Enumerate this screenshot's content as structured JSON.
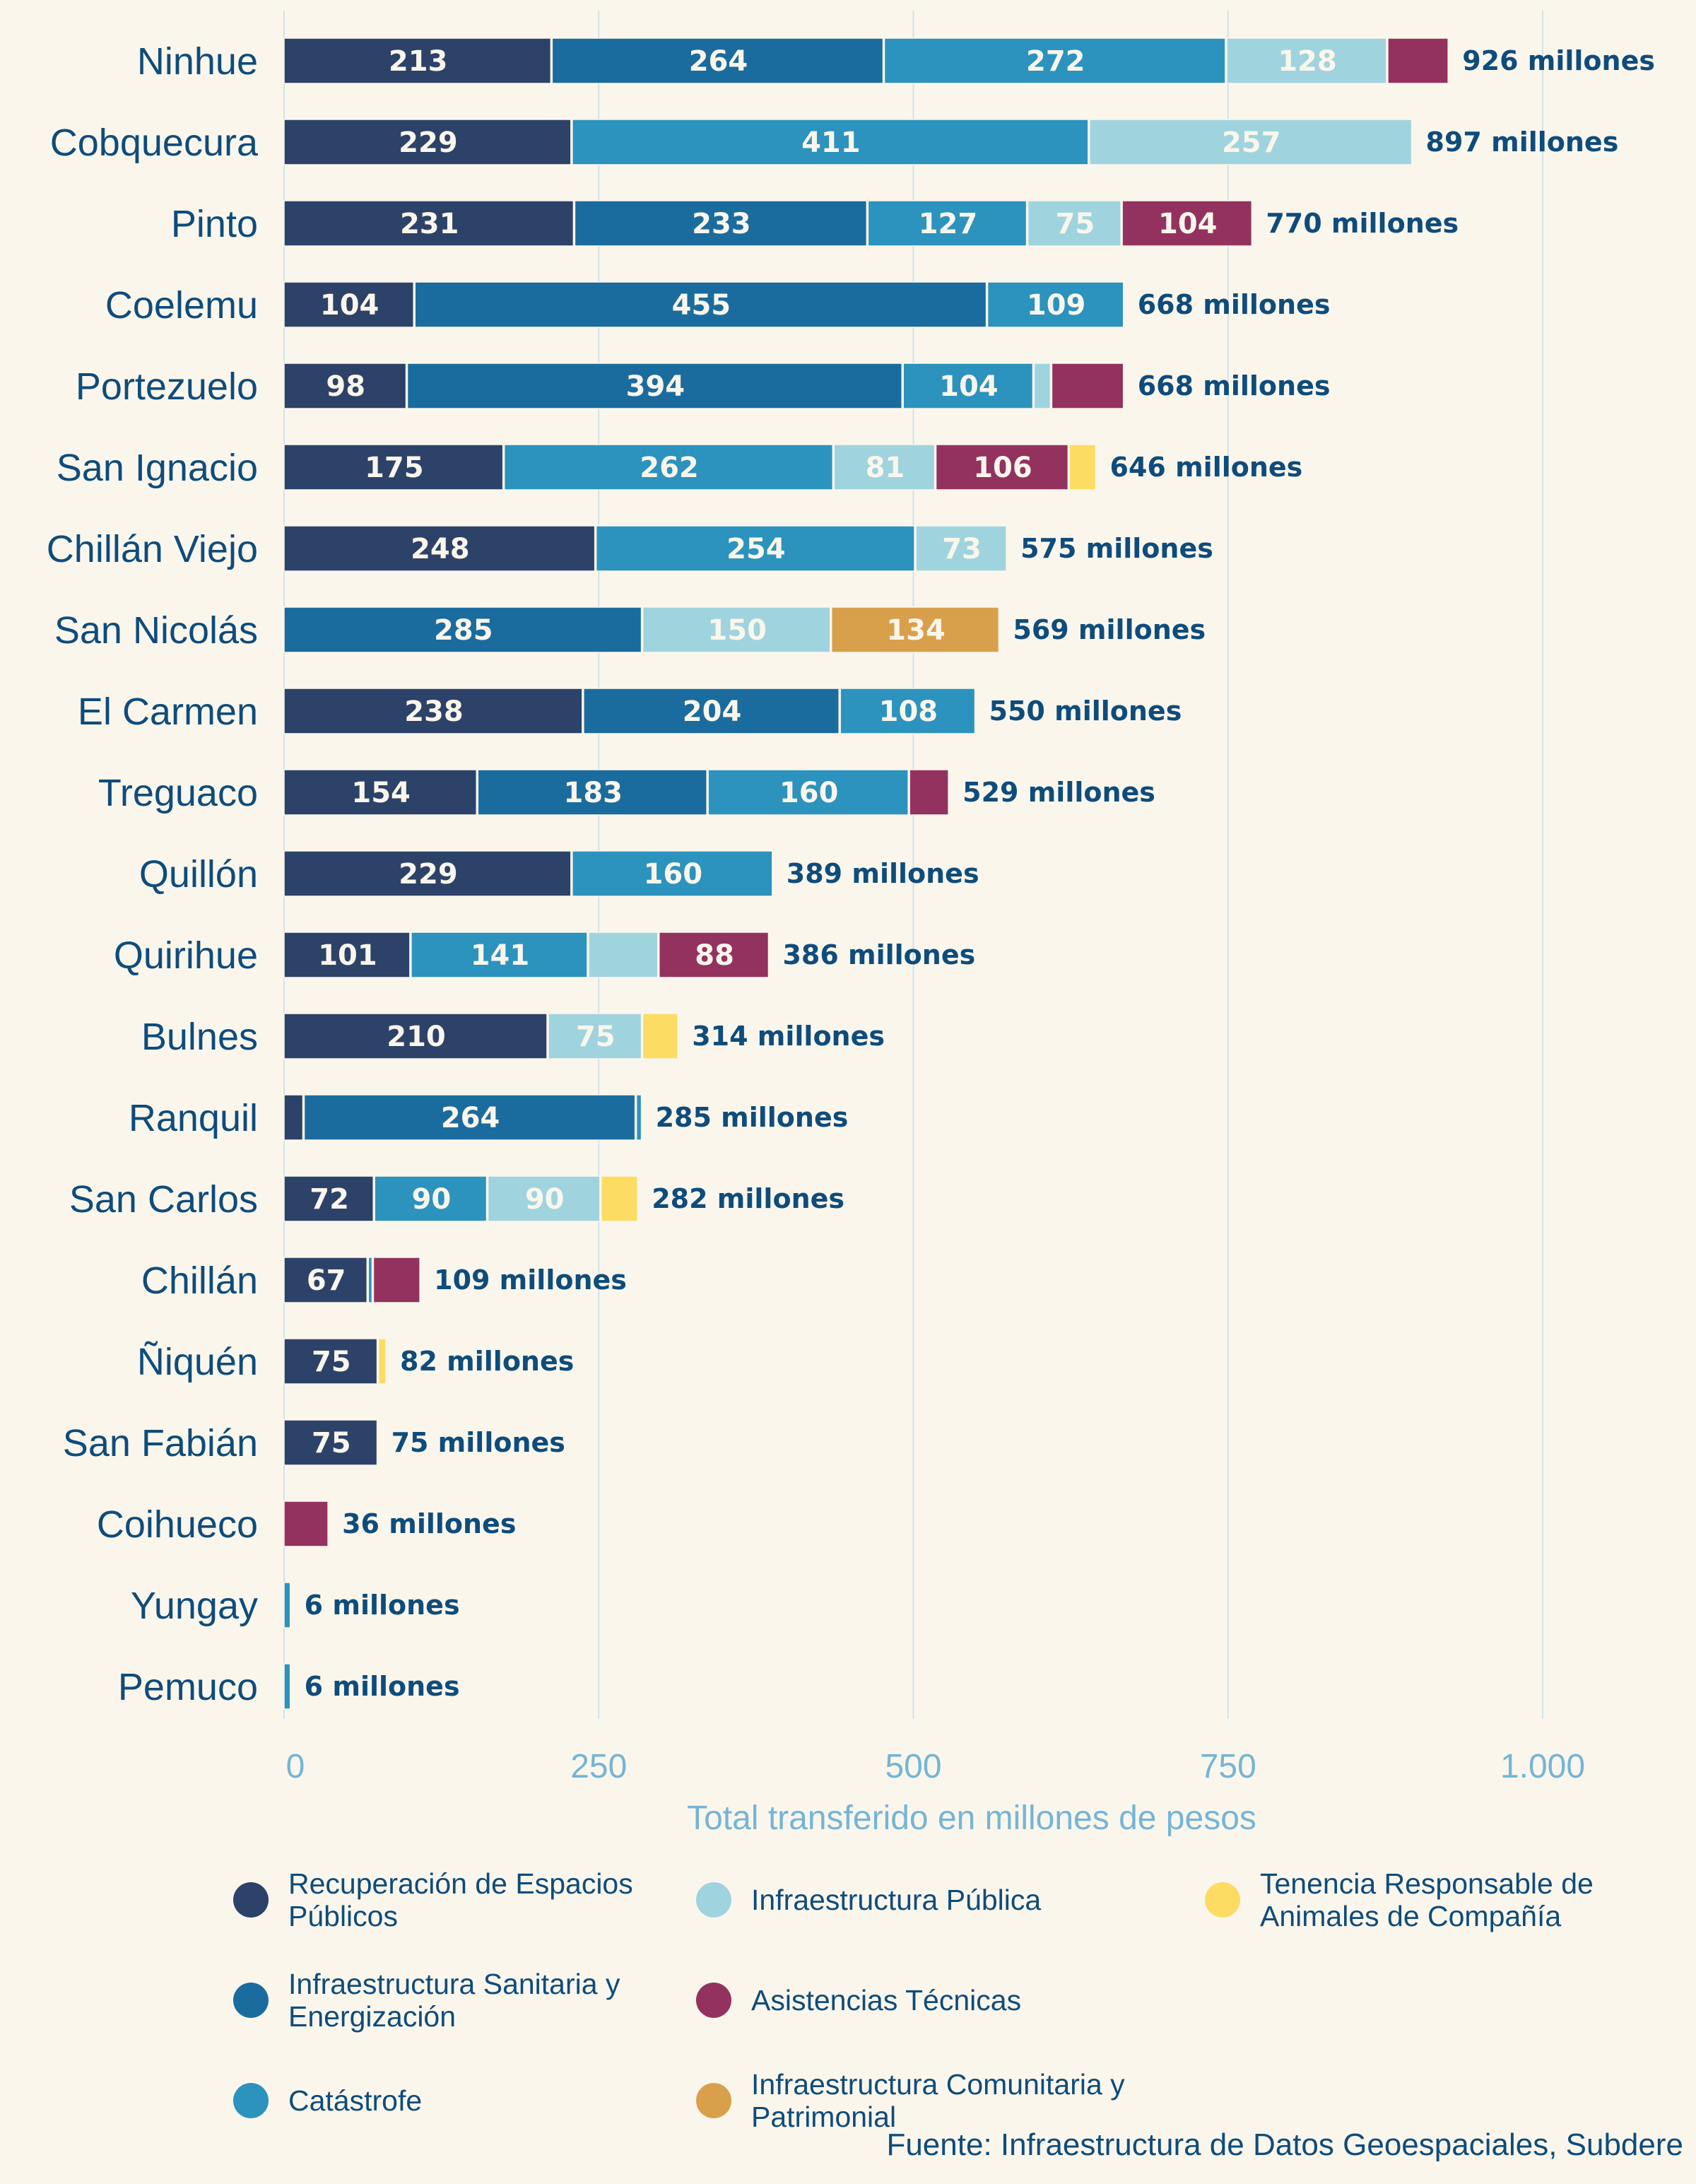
{
  "chart_data": {
    "type": "bar",
    "orientation": "horizontal",
    "stacked": true,
    "title": "",
    "xlabel": "Total transferido en millones de pesos",
    "ylabel": "",
    "xlim": [
      0,
      1000
    ],
    "xticks": [
      0,
      250,
      500,
      750,
      1000
    ],
    "xtick_labels": [
      "0",
      "250",
      "500",
      "750",
      "1.000"
    ],
    "grid": "vertical",
    "legend_position": "bottom",
    "total_suffix": " millones",
    "categories": [
      "Ninhue",
      "Cobquecura",
      "Pinto",
      "Coelemu",
      "Portezuelo",
      "San Ignacio",
      "Chillán Viejo",
      "San Nicolás",
      "El Carmen",
      "Treguaco",
      "Quillón",
      "Quirihue",
      "Bulnes",
      "Ranquil",
      "San Carlos",
      "Chillán",
      "Ñiquén",
      "San Fabián",
      "Coihueco",
      "Yungay",
      "Pemuco"
    ],
    "totals": [
      926,
      897,
      770,
      668,
      668,
      646,
      575,
      569,
      550,
      529,
      389,
      386,
      314,
      285,
      282,
      109,
      82,
      75,
      36,
      6,
      6
    ],
    "series": [
      {
        "name": "Recuperación de Espacios Públicos",
        "color": "#2c4268",
        "values": [
          213,
          229,
          231,
          104,
          98,
          175,
          248,
          0,
          238,
          154,
          229,
          101,
          210,
          16,
          72,
          67,
          75,
          75,
          0,
          0,
          0
        ]
      },
      {
        "name": "Infraestructura Sanitaria y Energización",
        "color": "#1b6c9e",
        "values": [
          264,
          0,
          233,
          455,
          394,
          0,
          0,
          285,
          204,
          183,
          0,
          0,
          0,
          264,
          0,
          0,
          0,
          0,
          0,
          0,
          0
        ]
      },
      {
        "name": "Catástrofe",
        "color": "#2b93bd",
        "values": [
          272,
          411,
          127,
          109,
          104,
          262,
          254,
          0,
          108,
          160,
          160,
          141,
          0,
          5,
          90,
          4,
          0,
          0,
          0,
          6,
          6
        ]
      },
      {
        "name": "Infraestructura Pública",
        "color": "#9fd4df",
        "values": [
          128,
          257,
          75,
          0,
          14,
          81,
          73,
          150,
          0,
          0,
          0,
          56,
          75,
          0,
          90,
          0,
          0,
          0,
          0,
          0,
          0
        ]
      },
      {
        "name": "Asistencias Técnicas",
        "color": "#93325f",
        "values": [
          49,
          0,
          104,
          0,
          58,
          106,
          0,
          0,
          0,
          32,
          0,
          88,
          0,
          0,
          0,
          38,
          0,
          0,
          36,
          0,
          0
        ]
      },
      {
        "name": "Infraestructura Comunitaria y Patrimonial",
        "color": "#d9a04b",
        "values": [
          0,
          0,
          0,
          0,
          0,
          0,
          0,
          134,
          0,
          0,
          0,
          0,
          0,
          0,
          0,
          0,
          0,
          0,
          0,
          0,
          0
        ]
      },
      {
        "name": "Tenencia Responsable de Animales de Compañía",
        "color": "#fcdc63",
        "values": [
          0,
          0,
          0,
          0,
          0,
          22,
          0,
          0,
          0,
          0,
          0,
          0,
          29,
          0,
          30,
          0,
          7,
          0,
          0,
          0,
          0
        ]
      }
    ],
    "segment_labels": [
      [
        "213",
        "264",
        "272",
        "128",
        "",
        "",
        ""
      ],
      [
        "229",
        "",
        "411",
        "257",
        "",
        "",
        ""
      ],
      [
        "231",
        "233",
        "127",
        "75",
        "104",
        "",
        ""
      ],
      [
        "104",
        "455",
        "109",
        "",
        "",
        "",
        ""
      ],
      [
        "98",
        "394",
        "104",
        "",
        "",
        "",
        ""
      ],
      [
        "175",
        "",
        "262",
        "81",
        "106",
        "",
        ""
      ],
      [
        "248",
        "",
        "254",
        "73",
        "",
        "",
        ""
      ],
      [
        "",
        "285",
        "",
        "150",
        "",
        "134",
        ""
      ],
      [
        "238",
        "204",
        "108",
        "",
        "",
        "",
        ""
      ],
      [
        "154",
        "183",
        "160",
        "",
        "",
        "",
        ""
      ],
      [
        "229",
        "",
        "160",
        "",
        "",
        "",
        ""
      ],
      [
        "101",
        "",
        "141",
        "",
        "88",
        "",
        ""
      ],
      [
        "210",
        "",
        "",
        "75",
        "",
        "",
        ""
      ],
      [
        "",
        "264",
        "",
        "",
        "",
        "",
        ""
      ],
      [
        "72",
        "",
        "90",
        "90",
        "",
        "",
        ""
      ],
      [
        "67",
        "",
        "",
        "",
        "",
        "",
        ""
      ],
      [
        "75",
        "",
        "",
        "",
        "",
        "",
        ""
      ],
      [
        "75",
        "",
        "",
        "",
        "",
        "",
        ""
      ],
      [
        "",
        "",
        "",
        "",
        "",
        "",
        ""
      ],
      [
        "",
        "",
        "",
        "",
        "",
        "",
        ""
      ],
      [
        "",
        "",
        "",
        "",
        "",
        "",
        ""
      ]
    ]
  },
  "legend": {
    "items": [
      {
        "label": "Recuperación de Espacios Públicos",
        "color": "#2c4268"
      },
      {
        "label": "Infraestructura Pública",
        "color": "#9fd4df"
      },
      {
        "label": "Tenencia Responsable de Animales de Compañía",
        "color": "#fcdc63"
      },
      {
        "label": "Infraestructura Sanitaria y Energización",
        "color": "#1b6c9e"
      },
      {
        "label": "Asistencias Técnicas",
        "color": "#93325f"
      },
      {
        "label": "",
        "color": ""
      },
      {
        "label": "Catástrofe",
        "color": "#2b93bd"
      },
      {
        "label": "Infraestructura Comunitaria y Patrimonial",
        "color": "#d9a04b"
      }
    ]
  },
  "source": "Fuente: Infraestructura de Datos Geoespaciales, Subdere"
}
